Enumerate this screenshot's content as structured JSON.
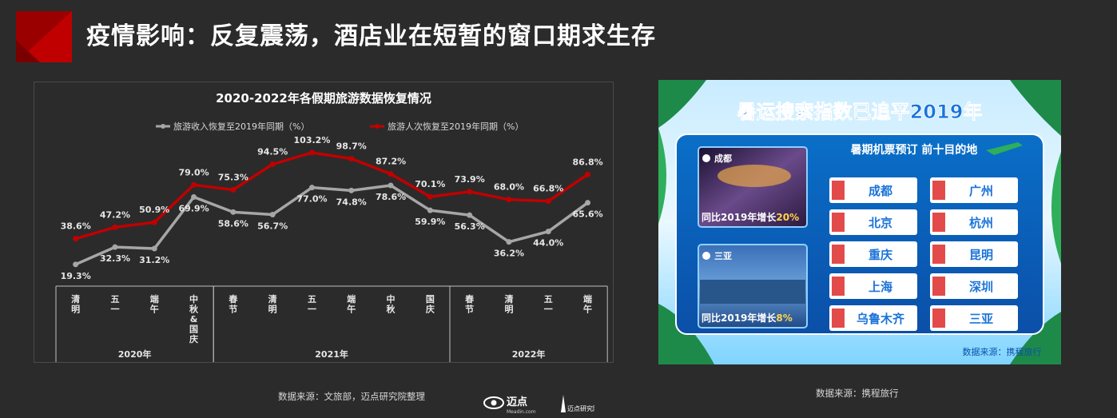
{
  "header": {
    "title": "疫情影响：反复震荡，酒店业在短暂的窗口期求生存"
  },
  "colors": {
    "accent_red": "#c00000",
    "series_gray": "#a6a6a6",
    "background": "#2b2b2b"
  },
  "chart_data": {
    "type": "line",
    "title": "2020-2022年各假期旅游数据恢复情况",
    "legend_position": "top",
    "categories": [
      "清明",
      "五一",
      "端午",
      "中秋&国庆",
      "春节",
      "清明",
      "五一",
      "端午",
      "中秋",
      "国庆",
      "春节",
      "清明",
      "五一",
      "端午"
    ],
    "category_labels": [
      [
        "清",
        "明"
      ],
      [
        "五",
        "一"
      ],
      [
        "端",
        "午"
      ],
      [
        "中",
        "秋",
        "&",
        "国",
        "庆"
      ],
      [
        "春",
        "节"
      ],
      [
        "清",
        "明"
      ],
      [
        "五",
        "一"
      ],
      [
        "端",
        "午"
      ],
      [
        "中",
        "秋"
      ],
      [
        "国",
        "庆"
      ],
      [
        "春",
        "节"
      ],
      [
        "清",
        "明"
      ],
      [
        "五",
        "一"
      ],
      [
        "端",
        "午"
      ]
    ],
    "groups": [
      {
        "name": "2020年",
        "start": 0,
        "end": 3
      },
      {
        "name": "2021年",
        "start": 4,
        "end": 9
      },
      {
        "name": "2022年",
        "start": 10,
        "end": 13
      }
    ],
    "series": [
      {
        "name": "旅游收入恢复至2019年同期（%）",
        "color": "#a6a6a6",
        "values": [
          19.3,
          32.3,
          31.2,
          69.9,
          58.6,
          56.7,
          77.0,
          74.8,
          78.6,
          59.9,
          56.3,
          36.2,
          44.0,
          65.6
        ],
        "labels": [
          "19.3%",
          "32.3%",
          "31.2%",
          "69.9%",
          "58.6%",
          "56.7%",
          "77.0%",
          "74.8%",
          "78.6%",
          "59.9%",
          "56.3%",
          "36.2%",
          "44.0%",
          "65.6%"
        ]
      },
      {
        "name": "旅游人次恢复至2019年同期（%）",
        "color": "#c00000",
        "values": [
          38.6,
          47.2,
          50.9,
          79.0,
          75.3,
          94.5,
          103.2,
          98.7,
          87.2,
          70.1,
          73.9,
          68.0,
          66.8,
          86.8
        ],
        "labels": [
          "38.6%",
          "47.2%",
          "50.9%",
          "79.0%",
          "75.3%",
          "94.5%",
          "103.2%",
          "98.7%",
          "87.2%",
          "70.1%",
          "73.9%",
          "68.0%",
          "66.8%",
          "86.8%"
        ]
      }
    ],
    "ylim": [
      0,
      120
    ],
    "grid": false
  },
  "sources": {
    "left": "数据来源：文旅部，迈点研究院整理",
    "right": "数据来源：携程旅行"
  },
  "logos": {
    "meadin": "迈点",
    "meadin_sub": "Meadin.com",
    "research": "迈点研究院"
  },
  "panel": {
    "title": "暑运搜索指数已追平2019年",
    "subtitle": "暑期机票预订 前十目的地",
    "photo1": {
      "city": "成都",
      "caption_prefix": "同比2019年增长",
      "caption_value": "20%"
    },
    "photo2": {
      "city": "三亚",
      "caption_prefix": "同比2019年增长",
      "caption_value": "8%"
    },
    "tickets": [
      "成都",
      "广州",
      "北京",
      "杭州",
      "重庆",
      "昆明",
      "上海",
      "深圳",
      "乌鲁木齐",
      "三亚"
    ],
    "footer": "数据来源：携程旅行"
  }
}
